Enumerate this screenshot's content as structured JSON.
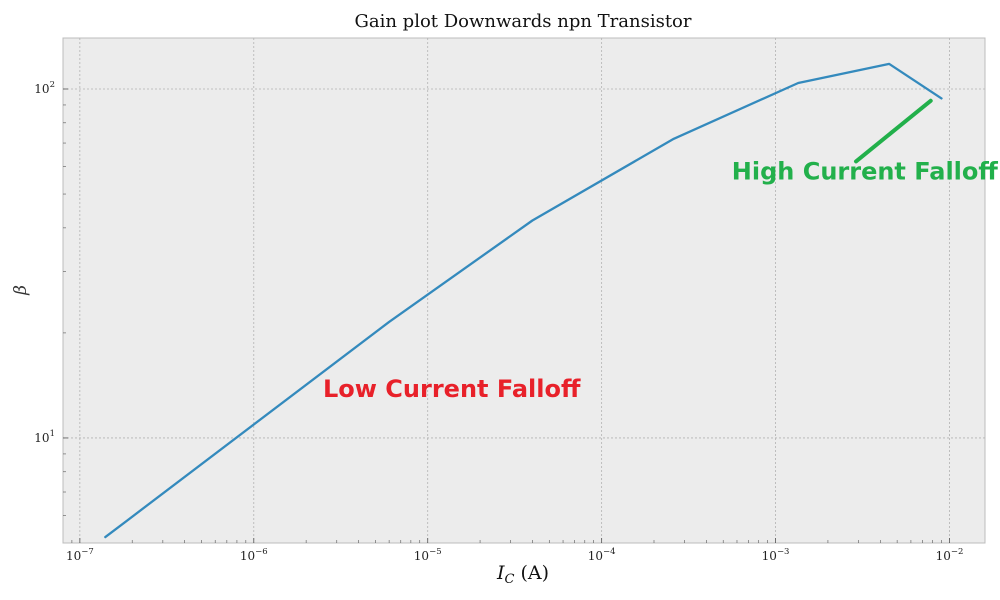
{
  "chart_data": {
    "type": "line",
    "title": "Gain plot Downwards npn Transistor",
    "xlabel": "I_C (A)",
    "ylabel": "β",
    "xscale": "log",
    "yscale": "log",
    "xlim": [
      8e-08,
      0.016
    ],
    "ylim": [
      5.0,
      140
    ],
    "grid": true,
    "x_ticks": [
      {
        "value": 1e-07,
        "base": "10",
        "exp": "−7"
      },
      {
        "value": 1e-06,
        "base": "10",
        "exp": "−6"
      },
      {
        "value": 1e-05,
        "base": "10",
        "exp": "−5"
      },
      {
        "value": 0.0001,
        "base": "10",
        "exp": "−4"
      },
      {
        "value": 0.001,
        "base": "10",
        "exp": "−3"
      },
      {
        "value": 0.01,
        "base": "10",
        "exp": "−2"
      }
    ],
    "y_ticks": [
      {
        "value": 10,
        "base": "10",
        "exp": "1"
      },
      {
        "value": 100,
        "base": "10",
        "exp": "2"
      }
    ],
    "series": [
      {
        "color": "#348abd",
        "x": [
          1.4e-07,
          6e-06,
          4e-05,
          0.00026,
          0.00135,
          0.0045,
          0.009
        ],
        "y": [
          5.2,
          21.5,
          42.0,
          72.0,
          104.0,
          118.0,
          94.0
        ]
      }
    ],
    "annotations": [
      {
        "text": "Low Current Falloff",
        "color": "#e8212a",
        "x": 2.5e-06,
        "y": 13.1
      },
      {
        "text": "High Current Falloff",
        "color": "#22b04b",
        "x": 0.00056,
        "y": 55.0,
        "line": {
          "x": [
            0.0029,
            0.0078
          ],
          "y": [
            62.0,
            92.5
          ]
        }
      }
    ]
  }
}
